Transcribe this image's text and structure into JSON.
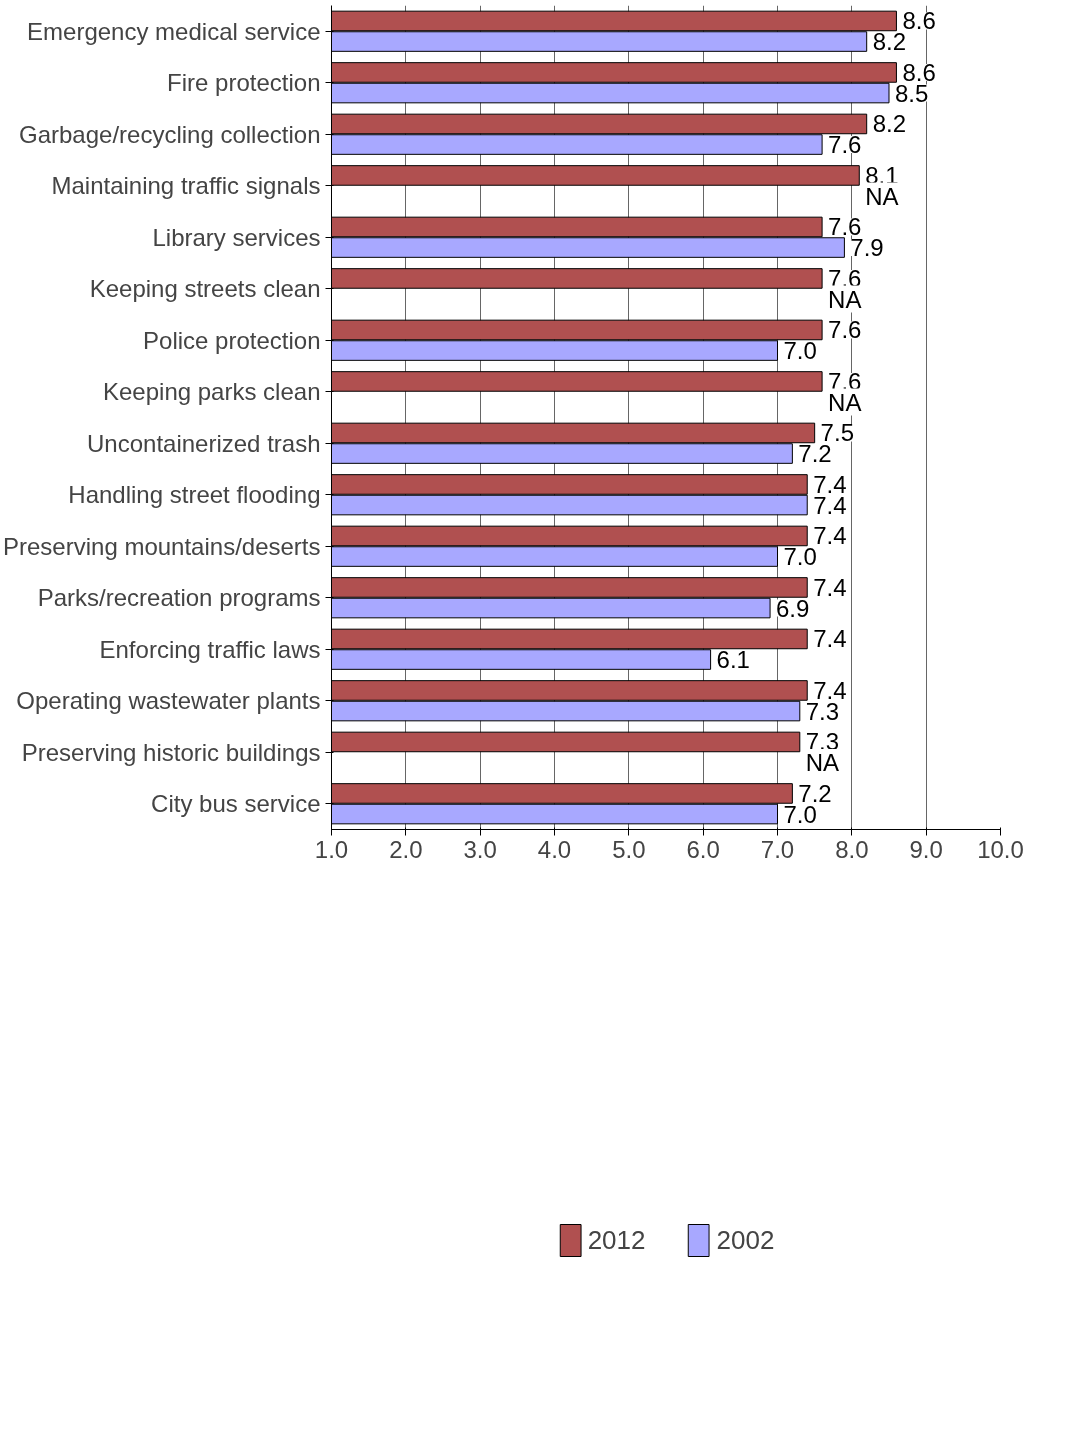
{
  "chart_data": {
    "type": "bar",
    "orientation": "horizontal",
    "categories": [
      "Emergency medical service",
      "Fire protection",
      "Garbage/recycling collection",
      "Maintaining traffic signals",
      "Library services",
      "Keeping streets clean",
      "Police protection",
      "Keeping parks clean",
      "Uncontainerized trash",
      "Handling street flooding",
      "Preserving mountains/deserts",
      "Parks/recreation programs",
      "Enforcing traffic laws",
      "Operating wastewater plants",
      "Preserving historic buildings",
      "City bus service"
    ],
    "series": [
      {
        "name": "2012",
        "color": "#b05050",
        "values": [
          8.6,
          8.6,
          8.2,
          8.1,
          7.6,
          7.6,
          7.6,
          7.6,
          7.5,
          7.4,
          7.4,
          7.4,
          7.4,
          7.4,
          7.3,
          7.2
        ],
        "value_labels": [
          "8.6",
          "8.6",
          "8.2",
          "8.1",
          "7.6",
          "7.6",
          "7.6",
          "7.6",
          "7.5",
          "7.4",
          "7.4",
          "7.4",
          "7.4",
          "7.4",
          "7.3",
          "7.2"
        ]
      },
      {
        "name": "2002",
        "color": "#a8a8ff",
        "values": [
          8.2,
          8.5,
          7.6,
          null,
          7.9,
          null,
          7.0,
          null,
          7.2,
          7.4,
          7.0,
          6.9,
          6.1,
          7.3,
          null,
          7.0
        ],
        "value_labels": [
          "8.2",
          "8.5",
          "7.6",
          "NA",
          "7.9",
          "NA",
          "7.0",
          "NA",
          "7.2",
          "7.4",
          "7.0",
          "6.9",
          "6.1",
          "7.3",
          "NA",
          "7.0"
        ]
      }
    ],
    "xlim": [
      1,
      10
    ],
    "xticks": [
      {
        "value": 1,
        "label": "1.0"
      },
      {
        "value": 2,
        "label": "2.0"
      },
      {
        "value": 3,
        "label": "3.0"
      },
      {
        "value": 4,
        "label": "4.0"
      },
      {
        "value": 5,
        "label": "5.0"
      },
      {
        "value": 6,
        "label": "6.0"
      },
      {
        "value": 7,
        "label": "7.0"
      },
      {
        "value": 8,
        "label": "8.0"
      },
      {
        "value": 9,
        "label": "9.0"
      },
      {
        "value": 10,
        "label": "10.0"
      }
    ],
    "grid": "x",
    "legend": "bottom"
  }
}
